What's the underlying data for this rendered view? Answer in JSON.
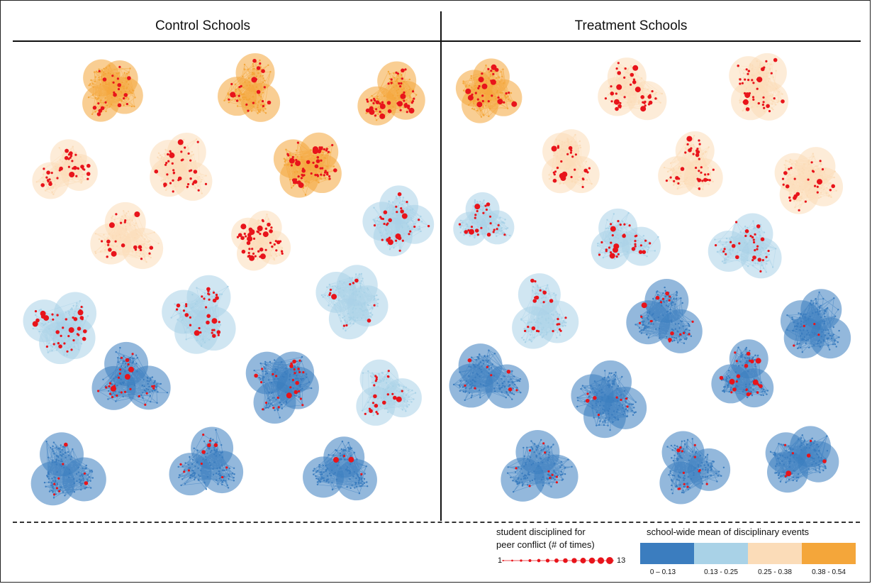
{
  "panels": {
    "control_title": "Control Schools",
    "treatment_title": "Treatment Schools"
  },
  "colors": {
    "bin1": "#3b7dbf",
    "bin2": "#a9d2e7",
    "bin3": "#fbdcb8",
    "bin4": "#f4a63a",
    "student": "#e8141b"
  },
  "networks": {
    "control": [
      {
        "bin": 4,
        "events": 22
      },
      {
        "bin": 4,
        "events": 30
      },
      {
        "bin": 4,
        "events": 55
      },
      {
        "bin": 3,
        "events": 40
      },
      {
        "bin": 3,
        "events": 45
      },
      {
        "bin": 4,
        "events": 70
      },
      {
        "bin": 3,
        "events": 60
      },
      {
        "bin": 2,
        "events": 35
      },
      {
        "bin": 3,
        "events": 28
      },
      {
        "bin": 2,
        "events": 45
      },
      {
        "bin": 2,
        "events": 40
      },
      {
        "bin": 2,
        "events": 12
      },
      {
        "bin": 1,
        "events": 30
      },
      {
        "bin": 1,
        "events": 35
      },
      {
        "bin": 2,
        "events": 25
      },
      {
        "bin": 1,
        "events": 10
      },
      {
        "bin": 1,
        "events": 12
      },
      {
        "bin": 1,
        "events": 4
      }
    ],
    "treatment": [
      {
        "bin": 4,
        "events": 35
      },
      {
        "bin": 3,
        "events": 40
      },
      {
        "bin": 3,
        "events": 45
      },
      {
        "bin": 3,
        "events": 30
      },
      {
        "bin": 3,
        "events": 40
      },
      {
        "bin": 3,
        "events": 30
      },
      {
        "bin": 2,
        "events": 25
      },
      {
        "bin": 2,
        "events": 35
      },
      {
        "bin": 2,
        "events": 30
      },
      {
        "bin": 2,
        "events": 25
      },
      {
        "bin": 1,
        "events": 20
      },
      {
        "bin": 1,
        "events": 4
      },
      {
        "bin": 1,
        "events": 8
      },
      {
        "bin": 1,
        "events": 8
      },
      {
        "bin": 1,
        "events": 30
      },
      {
        "bin": 1,
        "events": 10
      },
      {
        "bin": 1,
        "events": 15
      },
      {
        "bin": 1,
        "events": 8
      }
    ]
  },
  "legend": {
    "size_title_line1": "student disciplined for",
    "size_title_line2": "peer conflict (# of times)",
    "size_min": "1",
    "size_max": "13",
    "color_title": "school-wide mean of disciplinary events",
    "bins": [
      {
        "label": "0 – 0.13",
        "color": "#3b7dbf"
      },
      {
        "label": "0.13 - 0.25",
        "color": "#a9d2e7"
      },
      {
        "label": "0.25 - 0.38",
        "color": "#fbdcb8"
      },
      {
        "label": "0.38 - 0.54",
        "color": "#f4a63a"
      }
    ]
  }
}
